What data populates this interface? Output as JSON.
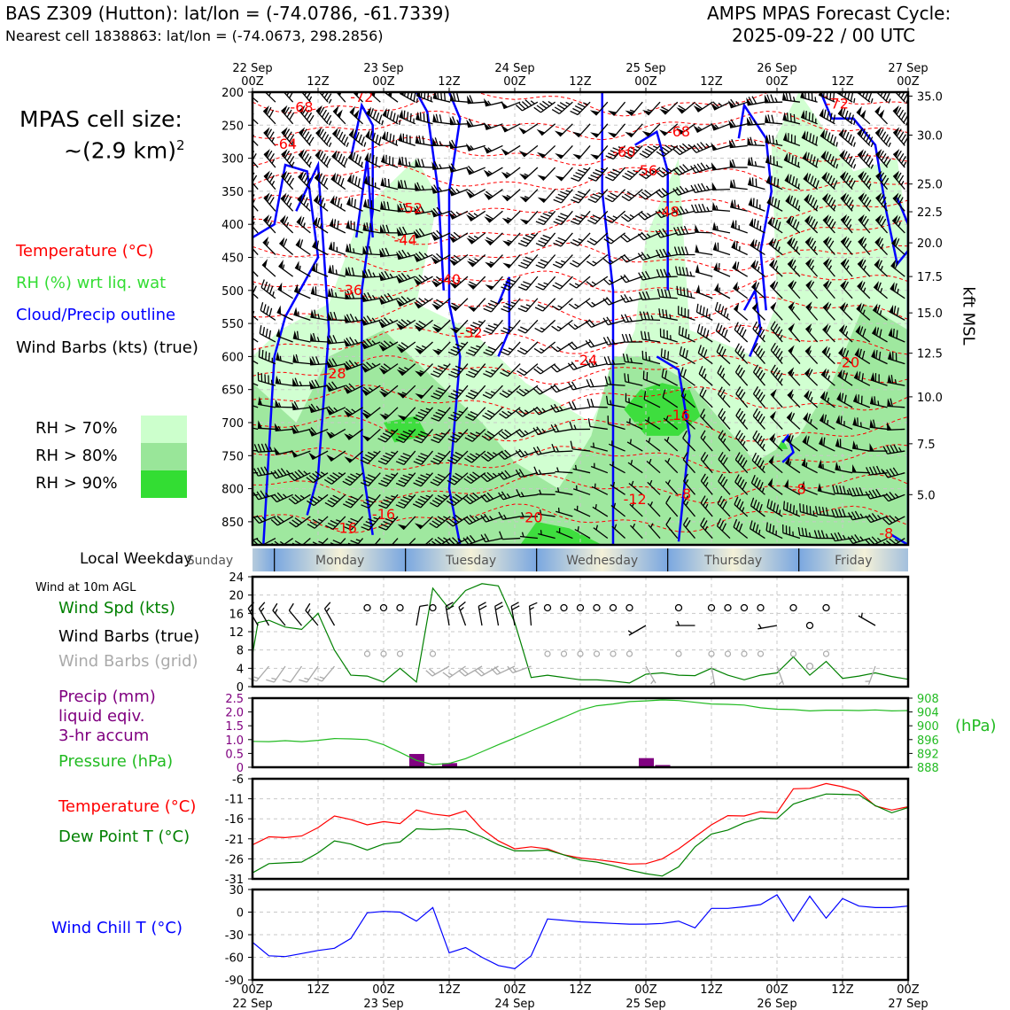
{
  "header": {
    "station_line": "BAS Z309 (Hutton): lat/lon = (-74.0786, -61.7339)",
    "cell_line": "Nearest cell 1838863: lat/lon = (-74.0673, 298.2856)",
    "cycle_title": "AMPS MPAS Forecast Cycle:",
    "cycle_time": "2025-09-22 / 00 UTC"
  },
  "legend": {
    "cell_size_label": "MPAS cell size:",
    "cell_size_value": "~(2.9 km)",
    "cell_size_exp": "2",
    "temperature": "Temperature (°C)",
    "rh": "RH (%) wrt liq. wat",
    "cloud": "Cloud/Precip outline",
    "barbs": "Wind Barbs (kts) (true)",
    "rh_levels": [
      {
        "label": "RH > 70%",
        "color": "#ccffcc"
      },
      {
        "label": "RH > 80%",
        "color": "#99e699"
      },
      {
        "label": "RH > 90%",
        "color": "#33dd33"
      }
    ],
    "weekday_label": "Local Weekday",
    "wind10_label": "Wind at 10m AGL",
    "wspd_label": "Wind Spd (kts)",
    "barbs_true_label": "Wind Barbs (true)",
    "barbs_grid_label": "Wind Barbs (grid)",
    "precip_label_1": "Precip (mm)",
    "precip_label_2": "liquid eqiv.",
    "precip_label_3": "3-hr accum",
    "pressure_label": "Pressure (hPa)",
    "hpa_unit": "(hPa)",
    "temp_label": "Temperature (°C)",
    "dew_label": "Dew Point T (°C)",
    "chill_label": "Wind Chill T (°C)",
    "kft_label": "kft MSL"
  },
  "colors": {
    "temp": "#ff0000",
    "rh": "#33dd33",
    "cloud": "#0000ff",
    "wspd": "#008000",
    "precip": "#800080",
    "pressure": "#22bb22",
    "dew": "#008000",
    "chill": "#0000ff",
    "grid_barb": "#aaaaaa"
  },
  "chart_data": [
    {
      "type": "heatmap",
      "name_note": "cross-section",
      "top_ticks": [
        {
          "day": "22 Sep",
          "hour": "00Z"
        },
        {
          "day": "",
          "hour": "12Z"
        },
        {
          "day": "23 Sep",
          "hour": "00Z"
        },
        {
          "day": "",
          "hour": "12Z"
        },
        {
          "day": "24 Sep",
          "hour": "00Z"
        },
        {
          "day": "",
          "hour": "12Z"
        },
        {
          "day": "25 Sep",
          "hour": "00Z"
        },
        {
          "day": "",
          "hour": "12Z"
        },
        {
          "day": "26 Sep",
          "hour": "00Z"
        },
        {
          "day": "",
          "hour": "12Z"
        },
        {
          "day": "27 Sep",
          "hour": "00Z"
        }
      ],
      "x_hours": [
        0,
        120
      ],
      "ylim_hpa": [
        200,
        885
      ],
      "y_ticks": [
        200,
        250,
        300,
        350,
        400,
        450,
        500,
        550,
        600,
        650,
        700,
        750,
        800,
        850
      ],
      "kft_ticks": [
        {
          "label": "35.0",
          "hpa": 206
        },
        {
          "label": "30.0",
          "hpa": 265
        },
        {
          "label": "25.0",
          "hpa": 339
        },
        {
          "label": "22.5",
          "hpa": 381
        },
        {
          "label": "20.0",
          "hpa": 428
        },
        {
          "label": "17.5",
          "hpa": 479
        },
        {
          "label": "15.0",
          "hpa": 534
        },
        {
          "label": "12.5",
          "hpa": 595
        },
        {
          "label": "10.0",
          "hpa": 661
        },
        {
          "label": "7.5",
          "hpa": 732
        },
        {
          "label": "5.0",
          "hpa": 809
        }
      ],
      "temp_labels": [
        {
          "text": "-72",
          "t": 20,
          "p": 207
        },
        {
          "text": "-68",
          "t": 9,
          "p": 222
        },
        {
          "text": "-64",
          "t": 6,
          "p": 278
        },
        {
          "text": "-72",
          "t": 107,
          "p": 217
        },
        {
          "text": "-68",
          "t": 78,
          "p": 259
        },
        {
          "text": "-60",
          "t": 68,
          "p": 290
        },
        {
          "text": "-56",
          "t": 72,
          "p": 318
        },
        {
          "text": "-48",
          "t": 76,
          "p": 380
        },
        {
          "text": "-52",
          "t": 29,
          "p": 375
        },
        {
          "text": "-44",
          "t": 28,
          "p": 423
        },
        {
          "text": "-40",
          "t": 36,
          "p": 483
        },
        {
          "text": "-36",
          "t": 18,
          "p": 499
        },
        {
          "text": "-32",
          "t": 40,
          "p": 563
        },
        {
          "text": "-28",
          "t": 15,
          "p": 625
        },
        {
          "text": "-24",
          "t": 61,
          "p": 605
        },
        {
          "text": "-20",
          "t": 109,
          "p": 608
        },
        {
          "text": "-16",
          "t": 78,
          "p": 688
        },
        {
          "text": "-16",
          "t": 24,
          "p": 838
        },
        {
          "text": "-16",
          "t": 17,
          "p": 859
        },
        {
          "text": "-20",
          "t": 51,
          "p": 843
        },
        {
          "text": "-12",
          "t": 70,
          "p": 815
        },
        {
          "text": "-8",
          "t": 79,
          "p": 807
        },
        {
          "text": "-8",
          "t": 100,
          "p": 800
        },
        {
          "text": "-8",
          "t": 116,
          "p": 867
        }
      ]
    },
    {
      "type": "line",
      "name_note": "10m wind speed",
      "y_ticks": [
        0,
        4,
        8,
        12,
        16,
        20,
        24
      ],
      "ylim": [
        0,
        24
      ],
      "x": [
        0,
        1,
        3,
        6,
        9,
        12,
        15,
        18,
        21,
        24,
        27,
        30,
        33,
        36,
        39,
        42,
        45,
        48,
        51,
        54,
        57,
        60,
        63,
        66,
        69,
        72,
        75,
        78,
        81,
        84,
        87,
        90,
        93,
        96,
        99,
        102,
        105,
        108,
        111,
        114,
        117,
        120
      ],
      "values": [
        7,
        14,
        14.5,
        13,
        12.5,
        16,
        8,
        2.5,
        2.3,
        1,
        4,
        1,
        21.5,
        17,
        21,
        22.5,
        22,
        14,
        2,
        2.5,
        2,
        1.5,
        1.5,
        1.2,
        0.8,
        2.7,
        3,
        2.5,
        2.4,
        4,
        2.5,
        1.5,
        2.5,
        3,
        6.5,
        2.5,
        5.5,
        1.8,
        2.3,
        3,
        2.2,
        1.6
      ],
      "calm_hours": [
        21,
        24,
        27,
        33,
        54,
        57,
        60,
        63,
        66,
        69,
        78,
        84,
        87,
        90,
        93,
        99,
        105
      ],
      "barbs_true": [
        {
          "t": 1,
          "dir": 330,
          "spd": 14
        },
        {
          "t": 3,
          "dir": 330,
          "spd": 14
        },
        {
          "t": 6,
          "dir": 320,
          "spd": 13
        },
        {
          "t": 9,
          "dir": 320,
          "spd": 12
        },
        {
          "t": 12,
          "dir": 320,
          "spd": 13
        },
        {
          "t": 15,
          "dir": 330,
          "spd": 16
        },
        {
          "t": 30,
          "dir": 10,
          "spd": 8
        },
        {
          "t": 36,
          "dir": 350,
          "spd": 21
        },
        {
          "t": 39,
          "dir": 340,
          "spd": 17
        },
        {
          "t": 42,
          "dir": 350,
          "spd": 21
        },
        {
          "t": 45,
          "dir": 350,
          "spd": 22
        },
        {
          "t": 48,
          "dir": 350,
          "spd": 22
        },
        {
          "t": 51,
          "dir": 355,
          "spd": 14
        },
        {
          "t": 72,
          "dir": 240,
          "spd": 3
        },
        {
          "t": 81,
          "dir": 270,
          "spd": 4
        },
        {
          "t": 96,
          "dir": 260,
          "spd": 3
        },
        {
          "t": 102,
          "dir": 270,
          "spd": 2
        },
        {
          "t": 114,
          "dir": 300,
          "spd": 3
        }
      ],
      "barbs_grid": [
        {
          "t": 3,
          "dir": 220,
          "spd": 14
        },
        {
          "t": 6,
          "dir": 215,
          "spd": 13
        },
        {
          "t": 9,
          "dir": 215,
          "spd": 12
        },
        {
          "t": 12,
          "dir": 215,
          "spd": 13
        },
        {
          "t": 15,
          "dir": 220,
          "spd": 16
        },
        {
          "t": 36,
          "dir": 240,
          "spd": 21
        },
        {
          "t": 39,
          "dir": 235,
          "spd": 17
        },
        {
          "t": 42,
          "dir": 240,
          "spd": 21
        },
        {
          "t": 45,
          "dir": 240,
          "spd": 22
        },
        {
          "t": 48,
          "dir": 245,
          "spd": 22
        },
        {
          "t": 51,
          "dir": 250,
          "spd": 14
        },
        {
          "t": 72,
          "dir": 150,
          "spd": 3
        },
        {
          "t": 84,
          "dir": 170,
          "spd": 4
        },
        {
          "t": 96,
          "dir": 160,
          "spd": 3
        },
        {
          "t": 102,
          "dir": 160,
          "spd": 2
        },
        {
          "t": 114,
          "dir": 200,
          "spd": 3
        }
      ]
    },
    {
      "type": "bar",
      "name_note": "precipitation and pressure",
      "precip_ticks": [
        "0",
        "0.5",
        "1.0",
        "1.5",
        "2.0",
        "2.5"
      ],
      "precip_ylim": [
        0,
        2.5
      ],
      "pressure_ticks": [
        888,
        892,
        896,
        900,
        904,
        908
      ],
      "pressure_ylim": [
        888,
        908
      ],
      "precip": [
        {
          "t": 30,
          "mm": 0.48
        },
        {
          "t": 36,
          "mm": 0.15
        },
        {
          "t": 72,
          "mm": 0.33
        },
        {
          "t": 75,
          "mm": 0.08
        }
      ],
      "pressure_x": [
        0,
        3,
        6,
        9,
        12,
        15,
        18,
        21,
        24,
        27,
        30,
        33,
        36,
        39,
        42,
        45,
        48,
        51,
        54,
        57,
        60,
        63,
        66,
        69,
        72,
        75,
        78,
        81,
        84,
        87,
        90,
        93,
        96,
        99,
        102,
        105,
        108,
        111,
        114,
        117,
        120
      ],
      "pressure": [
        895.5,
        895.4,
        895.7,
        895.4,
        895.8,
        896.3,
        896.2,
        896.0,
        894.5,
        892.3,
        890.0,
        888.8,
        889.1,
        890.5,
        892.5,
        894.5,
        896.5,
        898.5,
        900.5,
        902.5,
        904.5,
        905.8,
        906.3,
        907.0,
        907.2,
        907.5,
        907.3,
        906.8,
        906.3,
        906.2,
        906.0,
        905.2,
        904.8,
        904.7,
        904.3,
        904.5,
        904.5,
        904.4,
        904.6,
        904.3,
        904.4
      ]
    },
    {
      "type": "line",
      "name_note": "temperature and dew point",
      "y_ticks": [
        -31,
        -26,
        -21,
        -16,
        -11,
        -6
      ],
      "ylim": [
        -31,
        -6
      ],
      "x": [
        0,
        3,
        6,
        9,
        12,
        15,
        18,
        21,
        24,
        27,
        30,
        33,
        36,
        39,
        42,
        45,
        48,
        51,
        54,
        57,
        60,
        63,
        66,
        69,
        72,
        75,
        78,
        81,
        84,
        87,
        90,
        93,
        96,
        99,
        102,
        105,
        108,
        111,
        114,
        117,
        120
      ],
      "temperature": [
        -22.5,
        -20.5,
        -20.7,
        -20.3,
        -18.2,
        -15.3,
        -16.2,
        -17.5,
        -16.7,
        -17.2,
        -13.8,
        -14.8,
        -15.3,
        -14.0,
        -18.5,
        -21.5,
        -23.5,
        -23.0,
        -23.5,
        -25.0,
        -25.8,
        -26.2,
        -26.7,
        -27.3,
        -27.2,
        -26.0,
        -23.5,
        -20.5,
        -17.5,
        -15.2,
        -15.3,
        -14.2,
        -14.5,
        -8.5,
        -8.4,
        -7.2,
        -8.0,
        -9.2,
        -12.8,
        -13.8,
        -13.0
      ],
      "dew_point": [
        -29.5,
        -27.2,
        -27.0,
        -26.8,
        -24.5,
        -21.5,
        -22.3,
        -23.8,
        -22.3,
        -21.8,
        -18.5,
        -18.7,
        -18.5,
        -18.8,
        -20.5,
        -22.5,
        -24.0,
        -24.0,
        -23.8,
        -25.0,
        -26.3,
        -26.8,
        -27.7,
        -28.8,
        -29.7,
        -30.3,
        -28.0,
        -23.0,
        -19.8,
        -18.8,
        -17.0,
        -15.8,
        -16.0,
        -12.3,
        -11.0,
        -9.8,
        -9.9,
        -10.0,
        -12.7,
        -14.5,
        -13.2
      ]
    },
    {
      "type": "line",
      "name_note": "wind chill",
      "y_ticks": [
        -90,
        -60,
        -30,
        0,
        30
      ],
      "ylim": [
        -90,
        30
      ],
      "x": [
        0,
        3,
        6,
        9,
        12,
        15,
        18,
        21,
        24,
        27,
        30,
        33,
        36,
        39,
        42,
        45,
        48,
        51,
        54,
        57,
        60,
        63,
        66,
        69,
        72,
        75,
        78,
        81,
        84,
        87,
        90,
        93,
        96,
        99,
        102,
        105,
        108,
        111,
        114,
        117,
        120
      ],
      "values": [
        -40,
        -58,
        -59,
        -55,
        -51,
        -48,
        -35,
        -1,
        1,
        0,
        -12,
        6,
        -54,
        -47,
        -60,
        -71,
        -75,
        -58,
        -9,
        -11,
        -13,
        -14,
        -15,
        -16,
        -16,
        -15,
        -12,
        -21,
        5,
        5,
        7,
        10,
        23,
        -12,
        21,
        -8,
        18,
        8,
        6,
        6,
        8
      ]
    }
  ],
  "weekday_bar": {
    "days": [
      {
        "label": "Sunday",
        "start_h": -12,
        "end_h": 4
      },
      {
        "label": "Monday",
        "start_h": 4,
        "end_h": 28
      },
      {
        "label": "Tuesday",
        "start_h": 28,
        "end_h": 52
      },
      {
        "label": "Wednesday",
        "start_h": 52,
        "end_h": 76
      },
      {
        "label": "Thursday",
        "start_h": 76,
        "end_h": 100
      },
      {
        "label": "Friday",
        "start_h": 100,
        "end_h": 124
      }
    ]
  },
  "bottom_ticks": [
    {
      "hour": "00Z",
      "day": "22 Sep"
    },
    {
      "hour": "12Z",
      "day": ""
    },
    {
      "hour": "00Z",
      "day": "23 Sep"
    },
    {
      "hour": "12Z",
      "day": ""
    },
    {
      "hour": "00Z",
      "day": "24 Sep"
    },
    {
      "hour": "12Z",
      "day": ""
    },
    {
      "hour": "00Z",
      "day": "25 Sep"
    },
    {
      "hour": "12Z",
      "day": ""
    },
    {
      "hour": "00Z",
      "day": "26 Sep"
    },
    {
      "hour": "12Z",
      "day": ""
    },
    {
      "hour": "00Z",
      "day": "27 Sep"
    }
  ]
}
